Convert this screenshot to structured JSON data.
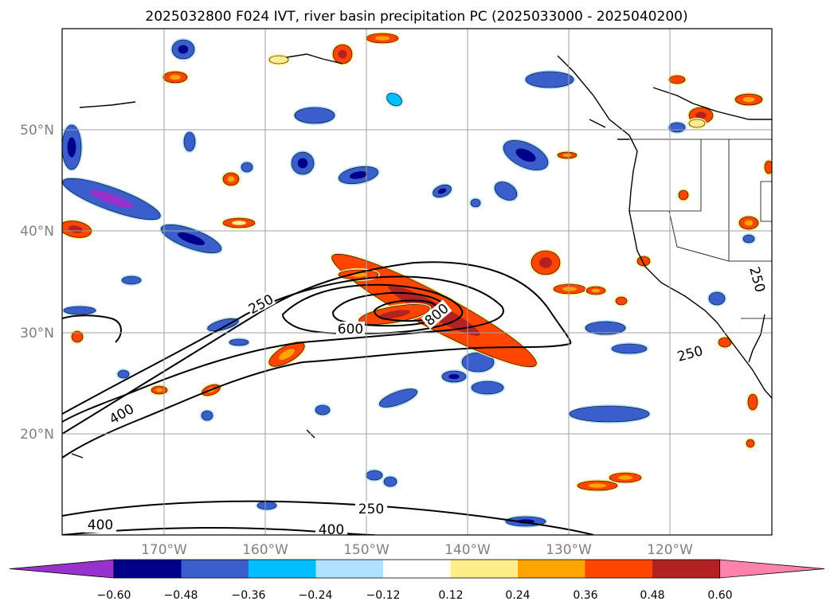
{
  "title": "2025032800 F024 IVT, river basin precipitation PC (2025033000 - 2025040200)",
  "map": {
    "projection": "PlateCarree",
    "extent_lon": [
      -180,
      -110
    ],
    "extent_lat": [
      10,
      60
    ],
    "gridlines": true,
    "lat_labels": [
      "20°N",
      "30°N",
      "40°N",
      "50°N"
    ],
    "lon_labels": [
      "170°W",
      "160°W",
      "150°W",
      "140°W",
      "130°W",
      "120°W"
    ],
    "contour_labels": [
      "250",
      "400",
      "600",
      "800",
      "250",
      "250",
      "250",
      "400",
      "400",
      "400"
    ]
  },
  "colorbar": {
    "orientation": "horizontal",
    "extend": "both",
    "ticks": [
      "−0.60",
      "−0.48",
      "−0.36",
      "−0.24",
      "−0.12",
      "0.12",
      "0.24",
      "0.36",
      "0.48",
      "0.60"
    ],
    "colors": [
      "#9932cc",
      "#00008b",
      "#3a5fcd",
      "#00bfff",
      "#b0e2ff",
      "#ffffff",
      "#ffec8b",
      "#ffa500",
      "#ff4500",
      "#b22222",
      "#ff82ab"
    ]
  }
}
